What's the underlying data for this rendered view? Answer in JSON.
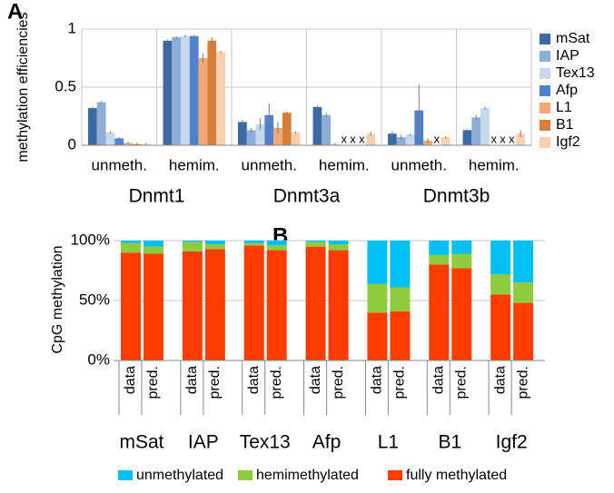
{
  "chart_data": [
    {
      "type": "bar",
      "panel_label": "A",
      "ylabel": "methylation efficiencies",
      "categories": [
        "unmeth.",
        "hemim.",
        "unmeth.",
        "hemim.",
        "unmeth.",
        "hemim."
      ],
      "groups": [
        "Dnmt1",
        "Dnmt3a",
        "Dnmt3b"
      ],
      "missing_marker": "x",
      "ylim": [
        0,
        1
      ],
      "yticks": [
        0,
        0.5,
        1
      ],
      "series": [
        {
          "name": "mSat",
          "color": "#3d6aa3",
          "values": [
            0.32,
            0.9,
            0.2,
            0.33,
            0.1,
            0.13
          ],
          "errors": [
            0.01,
            0.01,
            0.02,
            0.01,
            0.02,
            0.01
          ]
        },
        {
          "name": "IAP",
          "color": "#8eaed6",
          "values": [
            0.37,
            0.93,
            0.13,
            0.26,
            0.07,
            0.24
          ],
          "errors": [
            0.01,
            0.01,
            0.02,
            0.02,
            0.02,
            0.02
          ]
        },
        {
          "name": "Tex13",
          "color": "#c5d8ee",
          "values": [
            0.11,
            0.94,
            0.18,
            0.01,
            0.09,
            0.32
          ],
          "errors": [
            0.01,
            0.01,
            0.05,
            0.01,
            0.01,
            0.01
          ]
        },
        {
          "name": "Afp",
          "color": "#5082cc",
          "values": [
            0.06,
            0.94,
            0.26,
            null,
            0.3,
            null
          ],
          "errors": [
            0.01,
            0.01,
            0.1,
            null,
            0.22,
            null
          ]
        },
        {
          "name": "L1",
          "color": "#f4a878",
          "values": [
            0.02,
            0.75,
            0.15,
            null,
            0.04,
            null
          ],
          "errors": [
            0.01,
            0.04,
            0.05,
            null,
            0.02,
            null
          ]
        },
        {
          "name": "B1",
          "color": "#d67e3b",
          "values": [
            0.01,
            0.9,
            0.28,
            null,
            null,
            null
          ],
          "errors": [
            0.01,
            0.03,
            0.01,
            null,
            null,
            null
          ]
        },
        {
          "name": "Igf2",
          "color": "#f8d0b0",
          "values": [
            0.01,
            0.8,
            0.11,
            0.1,
            0.07,
            0.1
          ],
          "errors": [
            0.01,
            0.01,
            0.01,
            0.02,
            0.01,
            0.03
          ]
        }
      ]
    },
    {
      "type": "stacked_bar",
      "panel_label": "B",
      "ylabel": "CpG methylation",
      "categories": [
        "data",
        "pred.",
        "data",
        "pred.",
        "data",
        "pred.",
        "data",
        "pred.",
        "data",
        "pred.",
        "data",
        "pred.",
        "data",
        "pred."
      ],
      "groups": [
        "mSat",
        "IAP",
        "Tex13",
        "Afp",
        "L1",
        "B1",
        "Igf2"
      ],
      "ylim": [
        0,
        100
      ],
      "yticks": [
        {
          "value": 0,
          "label": "0%"
        },
        {
          "value": 50,
          "label": "50%"
        },
        {
          "value": 100,
          "label": "100%"
        }
      ],
      "series": [
        {
          "name": "unmethylated",
          "color": "#00bff3",
          "values": [
            2,
            5,
            1,
            3,
            2,
            4,
            1,
            3,
            36,
            39,
            12,
            11,
            28,
            35
          ]
        },
        {
          "name": "hemimethylated",
          "color": "#8dcb3f",
          "values": [
            8,
            6,
            8,
            4,
            2,
            4,
            4,
            5,
            24,
            20,
            8,
            12,
            17,
            17
          ]
        },
        {
          "name": "fully methylated",
          "color": "#ff3c00",
          "values": [
            90,
            89,
            91,
            93,
            96,
            92,
            95,
            92,
            40,
            41,
            80,
            77,
            55,
            48
          ]
        }
      ]
    }
  ]
}
